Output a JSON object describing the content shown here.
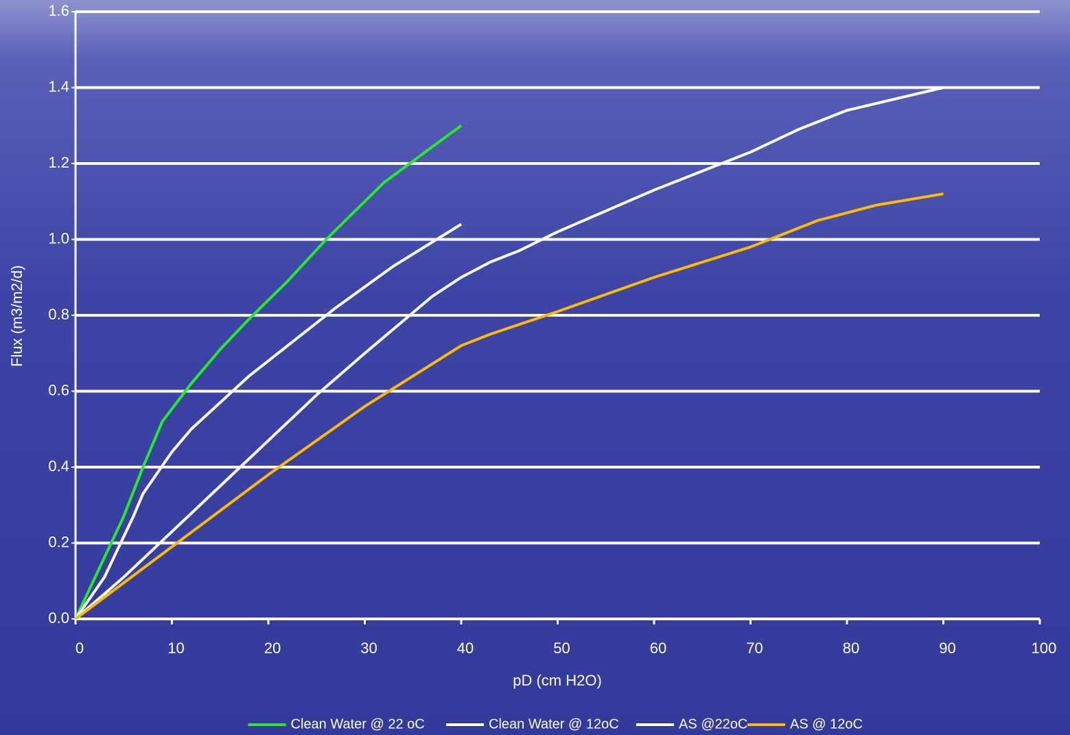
{
  "chart_data": {
    "type": "line",
    "x_label": "pD (cm H2O)",
    "y_label": "Flux (m3/m2/d)",
    "xlim": [
      0,
      100
    ],
    "xticks": [
      0,
      10,
      20,
      30,
      40,
      50,
      60,
      70,
      80,
      90,
      100
    ],
    "ylim": [
      0,
      1.6
    ],
    "yticks": [
      {
        "value": 0,
        "label": "0.0"
      },
      0.2,
      0.4,
      0.6,
      0.8,
      {
        "value": 1,
        "label": "1.0"
      },
      1.2,
      1.4,
      1.6
    ],
    "grid": true,
    "legend": "bottom",
    "series": [
      {
        "name": "Clean Water @ 22 oC",
        "color": "#22ee22",
        "x": [
          0,
          5,
          7,
          9,
          12,
          15,
          18,
          22,
          26,
          32,
          40
        ],
        "values": [
          0,
          0.27,
          0.4,
          0.52,
          0.62,
          0.71,
          0.79,
          0.89,
          1.0,
          1.15,
          1.3
        ]
      },
      {
        "name": "Clean Water @ 12oC",
        "color": "#ffffff",
        "x": [
          0,
          3,
          6,
          7,
          10,
          12,
          15,
          18,
          22,
          27,
          33,
          40
        ],
        "values": [
          0,
          0.11,
          0.27,
          0.33,
          0.44,
          0.5,
          0.57,
          0.64,
          0.72,
          0.82,
          0.93,
          1.04
        ]
      },
      {
        "name": "AS @22oC",
        "color": "#ffffff",
        "x": [
          0,
          5,
          10,
          15,
          20,
          25,
          30,
          37,
          40,
          43,
          46,
          50,
          60,
          70,
          75,
          80,
          85,
          90
        ],
        "values": [
          0,
          0.11,
          0.23,
          0.35,
          0.47,
          0.59,
          0.7,
          0.85,
          0.9,
          0.94,
          0.97,
          1.02,
          1.13,
          1.23,
          1.29,
          1.34,
          1.37,
          1.4
        ]
      },
      {
        "name": "AS @ 12oC",
        "color": "#ffbb00",
        "x": [
          0,
          10,
          20,
          30,
          35,
          40,
          43,
          50,
          60,
          70,
          77,
          80,
          83,
          90
        ],
        "values": [
          0,
          0.19,
          0.38,
          0.56,
          0.64,
          0.72,
          0.75,
          0.81,
          0.9,
          0.98,
          1.05,
          1.07,
          1.09,
          1.12
        ]
      }
    ]
  }
}
